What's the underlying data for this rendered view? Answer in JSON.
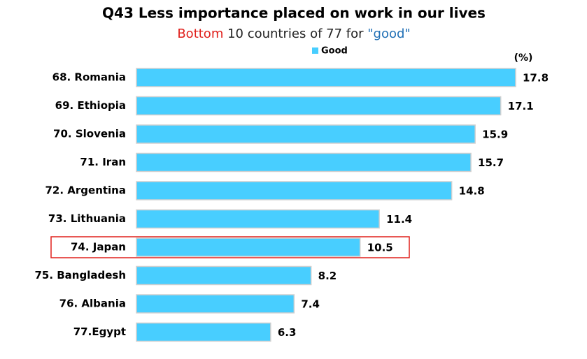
{
  "chart_data": {
    "type": "bar",
    "orientation": "horizontal",
    "title": "Q43 Less importance placed on work in our lives",
    "subtitle_parts": [
      {
        "text": "Bottom",
        "color": "#e0201c"
      },
      {
        "text": " 10 countries of 77 for ",
        "color": "#222222"
      },
      {
        "text": "\"good\"",
        "color": "#1f6fb5"
      }
    ],
    "unit_label": "(%)",
    "categories": [
      "68. Romania",
      "69. Ethiopia",
      "70. Slovenia",
      "71. Iran",
      "72. Argentina",
      "73. Lithuania",
      "74. Japan",
      "75. Bangladesh",
      "76. Albania",
      "77.Egypt"
    ],
    "series": [
      {
        "name": "Good",
        "color": "#48ceff",
        "values": [
          17.8,
          17.1,
          15.9,
          15.7,
          14.8,
          11.4,
          10.5,
          8.2,
          7.4,
          6.3
        ]
      }
    ],
    "highlight": "74. Japan",
    "highlight_color": "#e0201c"
  }
}
